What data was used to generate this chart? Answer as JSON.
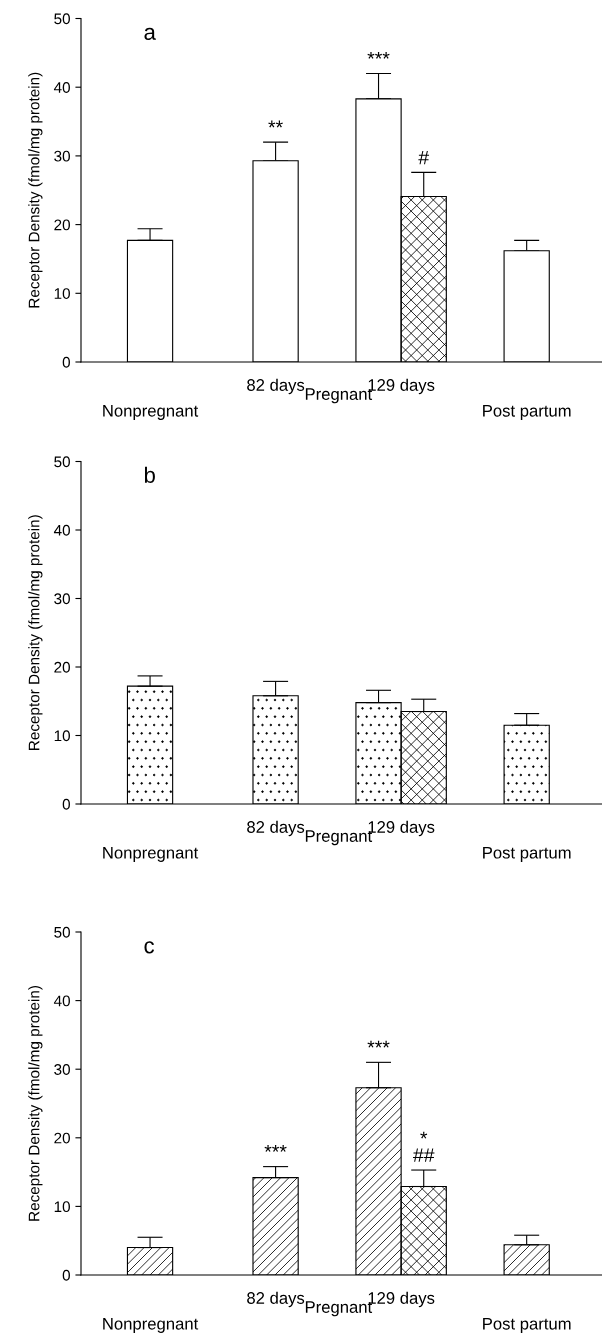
{
  "chart_data": [
    {
      "type": "bar",
      "title": "a",
      "ylabel": "Receptor Density (fmol/mg protein)",
      "categories": [
        "Nonpregnant",
        "82 days",
        "129 days",
        "Post partum"
      ],
      "ylim": [
        0,
        50
      ],
      "yticks": [
        0,
        10,
        20,
        30,
        40,
        50
      ],
      "grid": false,
      "legend": false,
      "series": [
        {
          "color": "#ffffff",
          "values": [
            17.7,
            29.3,
            38.3,
            16.2
          ],
          "errors": [
            [
              17.7,
              19.4
            ],
            [
              29.3,
              32.0
            ],
            [
              38.3,
              42.0
            ],
            [
              16.2,
              17.7
            ]
          ],
          "value_labels": [
            null,
            "**",
            "***",
            null
          ]
        },
        {
          "color": "#000000",
          "values": [
            null,
            null,
            24.1,
            null
          ],
          "errors": [
            null,
            null,
            [
              24.1,
              27.6
            ],
            null
          ],
          "value_labels": [
            null,
            null,
            "#",
            null
          ]
        }
      ],
      "annotations": [
        "Pregnant"
      ]
    },
    {
      "type": "bar",
      "title": "b",
      "ylabel": "Receptor Density (fmol/mg protein)",
      "categories": [
        "Nonpregnant",
        "82 days",
        "129 days",
        "Post partum"
      ],
      "ylim": [
        0,
        50
      ],
      "yticks": [
        0,
        10,
        20,
        30,
        40,
        50
      ],
      "grid": false,
      "legend": false,
      "series": [
        {
          "color": "#000000",
          "values": [
            17.2,
            15.8,
            14.8,
            11.5
          ],
          "errors": [
            [
              17.2,
              18.7
            ],
            [
              15.8,
              17.9
            ],
            [
              14.8,
              16.6
            ],
            [
              11.5,
              13.2
            ]
          ]
        },
        {
          "color": "#000000",
          "values": [
            null,
            null,
            13.5,
            null
          ],
          "errors": [
            null,
            null,
            [
              13.5,
              15.3
            ],
            null
          ]
        }
      ],
      "annotations": [
        "Pregnant"
      ]
    },
    {
      "type": "bar",
      "title": "c",
      "ylabel": "Receptor Density (fmol/mg protein)",
      "categories": [
        "Nonpregnant",
        "82 days",
        "129 days",
        "Post partum"
      ],
      "ylim": [
        0,
        50
      ],
      "yticks": [
        0,
        10,
        20,
        30,
        40,
        50
      ],
      "grid": false,
      "legend": false,
      "series": [
        {
          "color": "#000000",
          "values": [
            4.0,
            14.2,
            27.3,
            4.4
          ],
          "errors": [
            [
              4.0,
              5.5
            ],
            [
              14.2,
              15.8
            ],
            [
              27.3,
              31.0
            ],
            [
              4.4,
              5.8
            ]
          ],
          "value_labels": [
            null,
            "***",
            "***",
            null
          ]
        },
        {
          "color": "#000000",
          "values": [
            null,
            null,
            12.9,
            null
          ],
          "errors": [
            null,
            null,
            [
              12.9,
              15.3
            ],
            null
          ],
          "value_labels": [
            null,
            null,
            "*\n##",
            null
          ]
        }
      ],
      "annotations": [
        "Pregnant"
      ]
    }
  ]
}
